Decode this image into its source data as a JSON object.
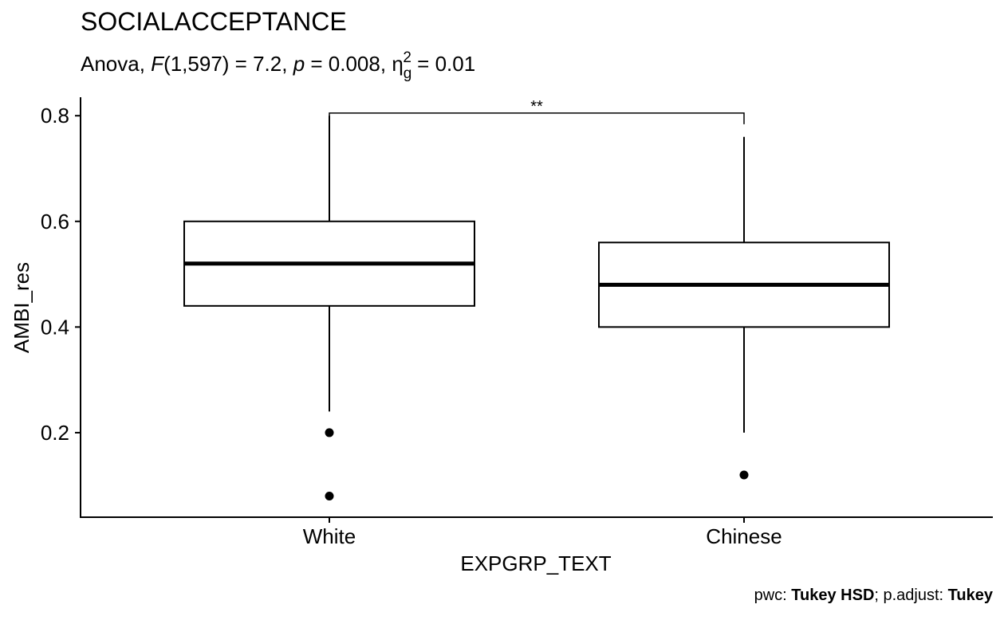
{
  "chart_data": {
    "type": "box",
    "title": "SOCIALACCEPTANCE",
    "subtitle": {
      "prefix": "Anova, ",
      "stat_name": "F",
      "df": "(1,597)",
      "stat_value": " = 7.2, ",
      "p_symbol": "p",
      "p_value": " = 0.008, ",
      "effect_symbol": "η",
      "effect_sub": "g",
      "effect_sup": "2",
      "effect_value": " = 0.01"
    },
    "xlabel": "EXPGRP_TEXT",
    "ylabel": "AMBI_res",
    "ylim": [
      0.04,
      0.835
    ],
    "yticks": [
      0.2,
      0.4,
      0.6,
      0.8
    ],
    "ytick_labels": [
      "0.2",
      "0.4",
      "0.6",
      "0.8"
    ],
    "categories": [
      "White",
      "Chinese"
    ],
    "boxes": [
      {
        "category": "White",
        "whisker_low": 0.24,
        "q1": 0.44,
        "median": 0.52,
        "q3": 0.6,
        "whisker_high": 0.8,
        "outliers": [
          0.2,
          0.08
        ]
      },
      {
        "category": "Chinese",
        "whisker_low": 0.2,
        "q1": 0.4,
        "median": 0.48,
        "q3": 0.56,
        "whisker_high": 0.76,
        "outliers": [
          0.12
        ]
      }
    ],
    "comparison": {
      "group1": "White",
      "group2": "Chinese",
      "label": "**",
      "y": 0.805
    },
    "caption": {
      "pwc_label": "pwc: ",
      "pwc_method": "Tukey HSD",
      "sep": "; p.adjust: ",
      "adjust_method": "Tukey"
    },
    "grid": false,
    "legend": "none"
  }
}
